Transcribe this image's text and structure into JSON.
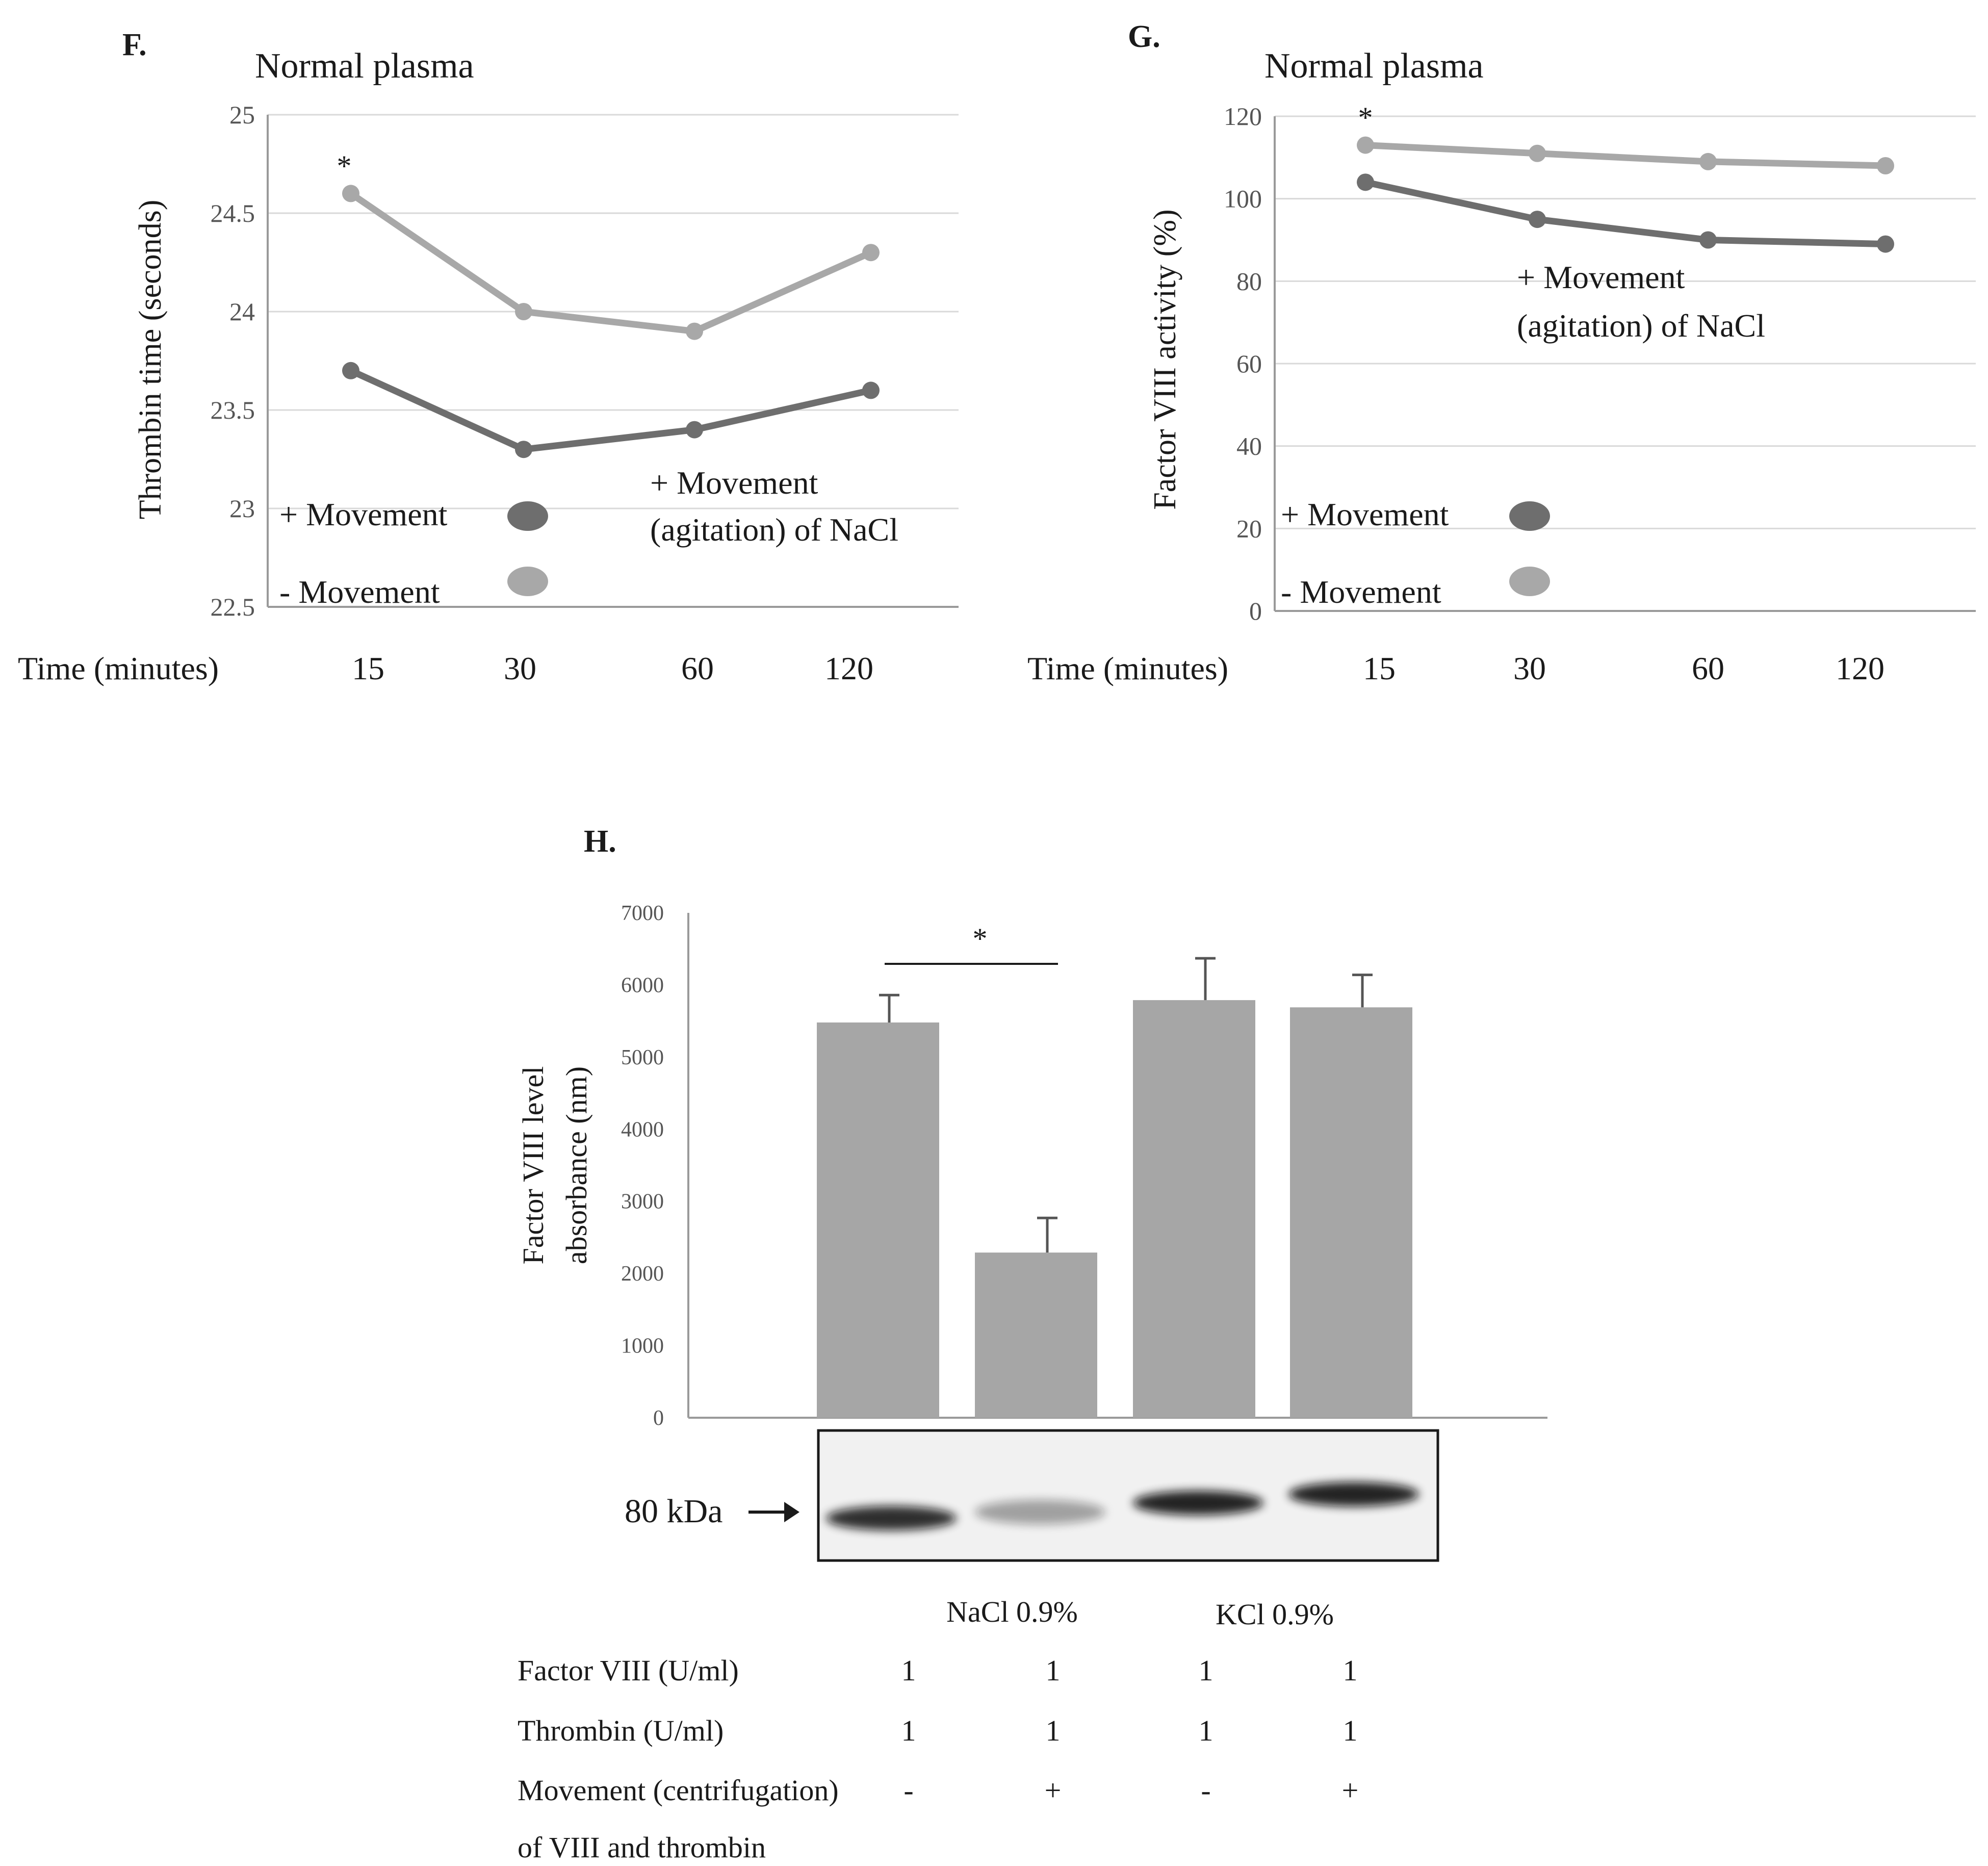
{
  "colors": {
    "movement_plus": "#6e6e6e",
    "movement_minus": "#a8a8a8",
    "bar_fill": "#a6a6a6",
    "grid": "#d9d9d9",
    "axis": "#9a9a9a",
    "text": "#1a1a1a",
    "tick_text": "#555555"
  },
  "chart_data": [
    {
      "type": "line",
      "panel_label": "F.",
      "title": "Normal plasma",
      "xlabel": "Time (minutes)",
      "ylabel": "Thrombin time (seconds)",
      "categories": [
        "15",
        "30",
        "60",
        "120"
      ],
      "ylim": [
        22.5,
        25
      ],
      "yticks": [
        "25",
        "24.5",
        "24",
        "23.5",
        "23",
        "22.5"
      ],
      "grid": true,
      "series": [
        {
          "name": "+ Movement",
          "values": [
            23.7,
            23.3,
            23.4,
            23.6
          ],
          "color": "#6e6e6e"
        },
        {
          "name": "- Movement",
          "values": [
            24.6,
            24.0,
            23.9,
            24.3
          ],
          "color": "#a8a8a8"
        }
      ],
      "annotation_star": "*",
      "annotation_line1": "+ Movement",
      "annotation_line2": "(agitation) of NaCl",
      "legend_position": "bottom-left"
    },
    {
      "type": "line",
      "panel_label": "G.",
      "title": "Normal plasma",
      "xlabel": "Time (minutes)",
      "ylabel": "Factor VIII activity (%)",
      "categories": [
        "15",
        "30",
        "60",
        "120"
      ],
      "ylim": [
        0,
        120
      ],
      "yticks": [
        "120",
        "100",
        "80",
        "60",
        "40",
        "20",
        "0"
      ],
      "grid": true,
      "series": [
        {
          "name": "+ Movement",
          "values": [
            104,
            95,
            90,
            89
          ],
          "color": "#6e6e6e"
        },
        {
          "name": "- Movement",
          "values": [
            113,
            111,
            109,
            108
          ],
          "color": "#a8a8a8"
        }
      ],
      "annotation_star": "*",
      "annotation_line1": "+ Movement",
      "annotation_line2": "(agitation) of NaCl",
      "legend_position": "bottom-left"
    },
    {
      "type": "bar",
      "panel_label": "H.",
      "ylabel_line1": "Factor VIII level",
      "ylabel_line2": "absorbance (nm)",
      "ylim": [
        0,
        7000
      ],
      "yticks": [
        "7000",
        "6000",
        "5000",
        "4000",
        "3000",
        "2000",
        "1000",
        "0"
      ],
      "values": [
        5480,
        2290,
        5790,
        5690
      ],
      "errors": [
        380,
        480,
        580,
        450
      ],
      "significance_star": "*",
      "blot_label": "80 kDa",
      "blot_intensity": [
        0.85,
        0.35,
        0.9,
        0.9
      ],
      "group_labels": [
        "NaCl 0.9%",
        "KCl 0.9%"
      ],
      "table_rows": [
        {
          "label": "Factor VIII (U/ml)",
          "values": [
            "1",
            "1",
            "1",
            "1"
          ]
        },
        {
          "label": "Thrombin (U/ml)",
          "values": [
            "1",
            "1",
            "1",
            "1"
          ]
        },
        {
          "label": "Movement (centrifugation)",
          "values": [
            "-",
            "+",
            "-",
            "+"
          ]
        },
        {
          "label": "of VIII and thrombin",
          "values": []
        }
      ]
    }
  ]
}
